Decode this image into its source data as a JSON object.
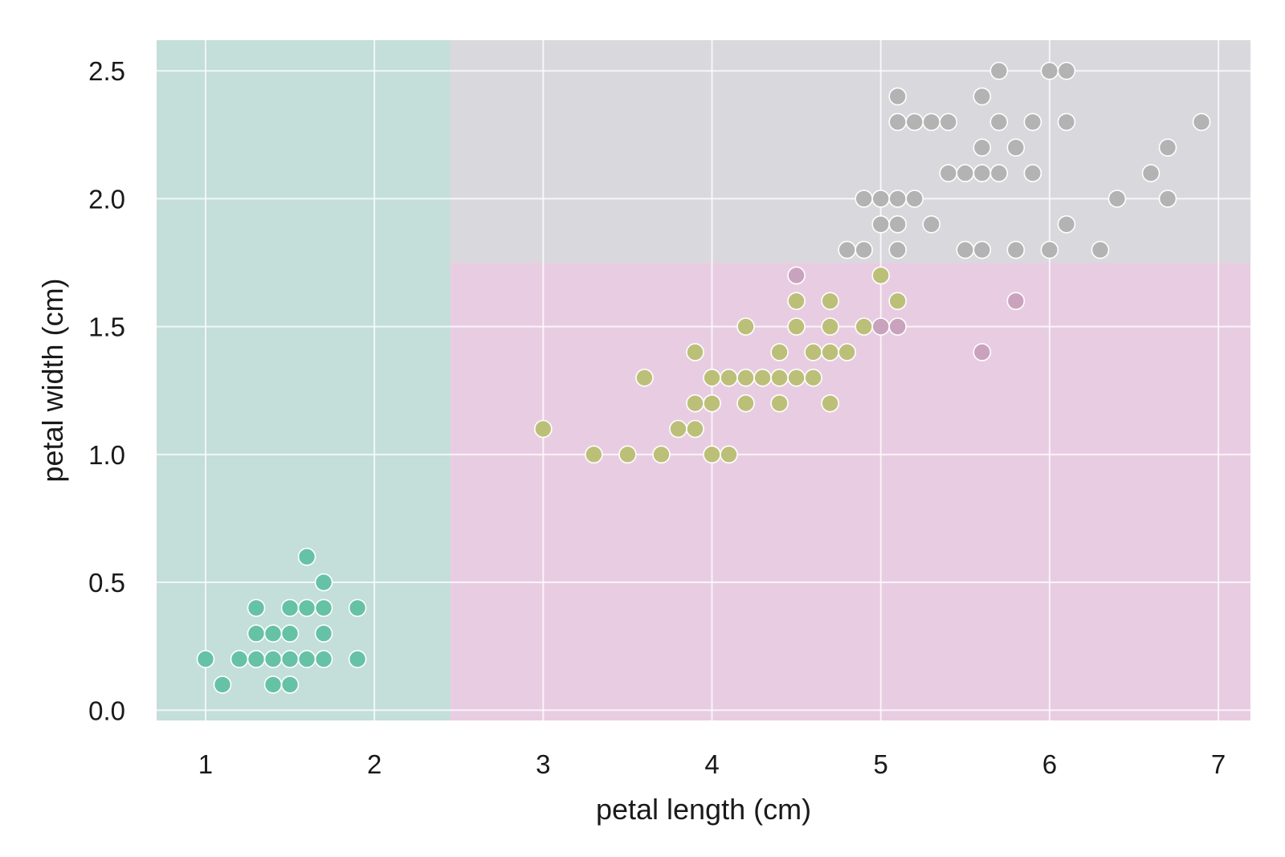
{
  "chart_data": {
    "type": "scatter",
    "title": "",
    "xlabel": "petal length (cm)",
    "ylabel": "petal width (cm)",
    "xlim": [
      0.71,
      7.19
    ],
    "ylim": [
      -0.04,
      2.62
    ],
    "xticks": [
      1,
      2,
      3,
      4,
      5,
      6,
      7
    ],
    "xtick_labels": [
      "1",
      "2",
      "3",
      "4",
      "5",
      "6",
      "7"
    ],
    "yticks": [
      0.0,
      0.5,
      1.0,
      1.5,
      2.0,
      2.5
    ],
    "ytick_labels": [
      "0.0",
      "0.5",
      "1.0",
      "1.5",
      "2.0",
      "2.5"
    ],
    "grid": true,
    "legend": "none",
    "colors": {
      "plot_background": "#eaeaf2",
      "grid": "#ffffff",
      "region_teal": "#c4ded9",
      "region_pink": "#e8cde2",
      "region_gray": "#d9d8dd",
      "point_teal": "#66c2a5",
      "point_olive": "#bcbf78",
      "point_gray": "#b3b3b3",
      "point_mauve": "#c9a3bd",
      "point_edge": "#ffffff"
    },
    "regions": [
      {
        "x": [
          0.71,
          2.45
        ],
        "y": [
          -0.04,
          2.62
        ],
        "color": "region_teal"
      },
      {
        "x": [
          2.45,
          7.19
        ],
        "y": [
          -0.04,
          1.75
        ],
        "color": "region_pink"
      },
      {
        "x": [
          2.45,
          7.19
        ],
        "y": [
          1.75,
          2.62
        ],
        "color": "region_gray"
      }
    ],
    "series": [
      {
        "color": "point_teal",
        "x": [
          1.0,
          1.1,
          1.2,
          1.3,
          1.3,
          1.3,
          1.4,
          1.4,
          1.4,
          1.5,
          1.5,
          1.5,
          1.5,
          1.6,
          1.6,
          1.6,
          1.7,
          1.7,
          1.7,
          1.7,
          1.9,
          1.9
        ],
        "y": [
          0.2,
          0.1,
          0.2,
          0.2,
          0.3,
          0.4,
          0.1,
          0.2,
          0.3,
          0.1,
          0.2,
          0.3,
          0.4,
          0.2,
          0.4,
          0.6,
          0.2,
          0.3,
          0.4,
          0.5,
          0.2,
          0.4
        ]
      },
      {
        "color": "point_olive",
        "x": [
          3.0,
          3.3,
          3.5,
          3.6,
          3.7,
          3.8,
          3.9,
          3.9,
          3.9,
          4.0,
          4.0,
          4.0,
          4.1,
          4.1,
          4.2,
          4.2,
          4.2,
          4.3,
          4.4,
          4.4,
          4.4,
          4.5,
          4.5,
          4.5,
          4.6,
          4.6,
          4.7,
          4.7,
          4.7,
          4.7,
          4.8,
          4.9,
          5.0,
          5.1
        ],
        "y": [
          1.1,
          1.0,
          1.0,
          1.3,
          1.0,
          1.1,
          1.1,
          1.2,
          1.4,
          1.0,
          1.2,
          1.3,
          1.0,
          1.3,
          1.2,
          1.3,
          1.5,
          1.3,
          1.2,
          1.3,
          1.4,
          1.3,
          1.5,
          1.6,
          1.3,
          1.4,
          1.2,
          1.4,
          1.5,
          1.6,
          1.4,
          1.5,
          1.7,
          1.6
        ]
      },
      {
        "color": "point_mauve",
        "x": [
          4.5,
          5.0,
          5.1,
          5.6,
          5.8
        ],
        "y": [
          1.7,
          1.5,
          1.5,
          1.4,
          1.6
        ]
      },
      {
        "color": "point_gray",
        "x": [
          4.8,
          4.9,
          4.9,
          5.0,
          5.0,
          5.1,
          5.1,
          5.1,
          5.1,
          5.1,
          5.2,
          5.2,
          5.3,
          5.3,
          5.4,
          5.4,
          5.5,
          5.5,
          5.6,
          5.6,
          5.6,
          5.6,
          5.7,
          5.7,
          5.7,
          5.8,
          5.8,
          5.9,
          5.9,
          6.0,
          6.0,
          6.1,
          6.1,
          6.1,
          6.3,
          6.4,
          6.6,
          6.7,
          6.7,
          6.9
        ],
        "y": [
          1.8,
          1.8,
          2.0,
          1.9,
          2.0,
          1.8,
          1.9,
          2.0,
          2.3,
          2.4,
          2.0,
          2.3,
          1.9,
          2.3,
          2.1,
          2.3,
          1.8,
          2.1,
          1.8,
          2.1,
          2.2,
          2.4,
          2.1,
          2.3,
          2.5,
          1.8,
          2.2,
          2.1,
          2.3,
          1.8,
          2.5,
          1.9,
          2.3,
          2.5,
          1.8,
          2.0,
          2.1,
          2.0,
          2.2,
          2.3
        ]
      }
    ]
  }
}
